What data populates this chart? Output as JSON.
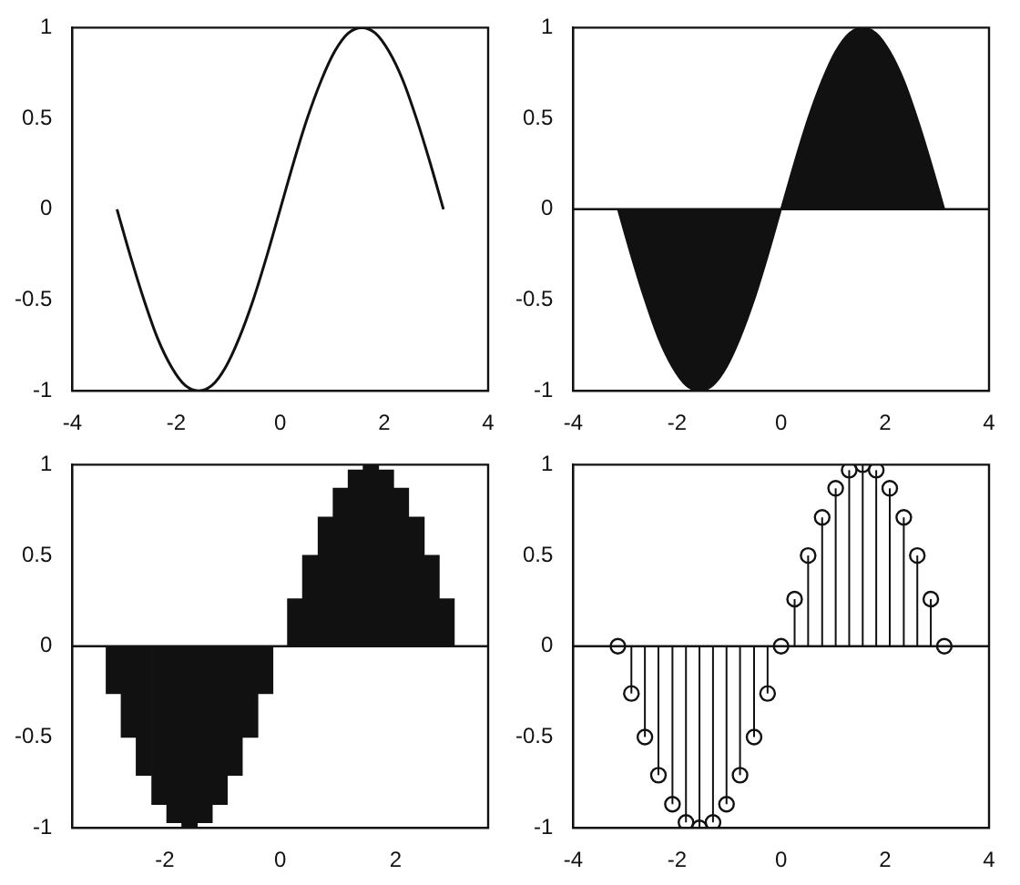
{
  "chart_data": [
    {
      "type": "line",
      "x": [
        -3.14,
        -2.88,
        -2.62,
        -2.36,
        -2.09,
        -1.83,
        -1.57,
        -1.31,
        -1.05,
        -0.79,
        -0.52,
        -0.26,
        0,
        0.26,
        0.52,
        0.79,
        1.05,
        1.31,
        1.57,
        1.83,
        2.09,
        2.36,
        2.62,
        2.88,
        3.14
      ],
      "series": [
        {
          "color": "#111111",
          "values": [
            0,
            -0.26,
            -0.5,
            -0.71,
            -0.87,
            -0.97,
            -1,
            -0.97,
            -0.87,
            -0.71,
            -0.5,
            -0.26,
            0,
            0.26,
            0.5,
            0.71,
            0.87,
            0.97,
            1,
            0.97,
            0.87,
            0.71,
            0.5,
            0.26,
            0
          ]
        }
      ],
      "xlim": [
        -4,
        4
      ],
      "xticks": [
        -4,
        -2,
        0,
        2,
        4
      ],
      "ylim": [
        -1,
        1
      ],
      "yticks": [
        -1,
        -0.5,
        0,
        0.5,
        1
      ]
    },
    {
      "type": "area",
      "x": [
        -3.14,
        -2.88,
        -2.62,
        -2.36,
        -2.09,
        -1.83,
        -1.57,
        -1.31,
        -1.05,
        -0.79,
        -0.52,
        -0.26,
        0,
        0.26,
        0.52,
        0.79,
        1.05,
        1.31,
        1.57,
        1.83,
        2.09,
        2.36,
        2.62,
        2.88,
        3.14
      ],
      "series": [
        {
          "color": "#111111",
          "values": [
            0,
            -0.26,
            -0.5,
            -0.71,
            -0.87,
            -0.97,
            -1,
            -0.97,
            -0.87,
            -0.71,
            -0.5,
            -0.26,
            0,
            0.26,
            0.5,
            0.71,
            0.87,
            0.97,
            1,
            0.97,
            0.87,
            0.71,
            0.5,
            0.26,
            0
          ]
        }
      ],
      "xlim": [
        -4,
        4
      ],
      "xticks": [
        -4,
        -2,
        0,
        2,
        4
      ],
      "ylim": [
        -1,
        1
      ],
      "yticks": [
        -1,
        -0.5,
        0,
        0.5,
        1
      ],
      "ref_lines": [
        {
          "axis": "y",
          "value": 0,
          "color": "#111111"
        }
      ]
    },
    {
      "type": "bar",
      "x": [
        -3.14,
        -2.88,
        -2.62,
        -2.36,
        -2.09,
        -1.83,
        -1.57,
        -1.31,
        -1.05,
        -0.79,
        -0.52,
        -0.26,
        0,
        0.26,
        0.52,
        0.79,
        1.05,
        1.31,
        1.57,
        1.83,
        2.09,
        2.36,
        2.62,
        2.88,
        3.14
      ],
      "series": [
        {
          "color": "#111111",
          "values": [
            0,
            -0.26,
            -0.5,
            -0.71,
            -0.87,
            -0.97,
            -1,
            -0.97,
            -0.87,
            -0.71,
            -0.5,
            -0.26,
            0,
            0.26,
            0.5,
            0.71,
            0.87,
            0.97,
            1,
            0.97,
            0.87,
            0.71,
            0.5,
            0.26,
            0
          ]
        }
      ],
      "xlim": [
        -3.6,
        3.6
      ],
      "xticks": [
        -2,
        0,
        2
      ],
      "ylim": [
        -1,
        1
      ],
      "yticks": [
        -1,
        -0.5,
        0,
        0.5,
        1
      ],
      "ref_lines": [
        {
          "axis": "y",
          "value": 0,
          "color": "#111111"
        }
      ]
    },
    {
      "type": "lollipop",
      "x": [
        -3.14,
        -2.88,
        -2.62,
        -2.36,
        -2.09,
        -1.83,
        -1.57,
        -1.31,
        -1.05,
        -0.79,
        -0.52,
        -0.26,
        0,
        0.26,
        0.52,
        0.79,
        1.05,
        1.31,
        1.57,
        1.83,
        2.09,
        2.36,
        2.62,
        2.88,
        3.14
      ],
      "series": [
        {
          "color": "#111111",
          "values": [
            0,
            -0.26,
            -0.5,
            -0.71,
            -0.87,
            -0.97,
            -1,
            -0.97,
            -0.87,
            -0.71,
            -0.5,
            -0.26,
            0,
            0.26,
            0.5,
            0.71,
            0.87,
            0.97,
            1,
            0.97,
            0.87,
            0.71,
            0.5,
            0.26,
            0
          ]
        }
      ],
      "xlim": [
        -4,
        4
      ],
      "xticks": [
        -4,
        -2,
        0,
        2,
        4
      ],
      "ylim": [
        -1,
        1
      ],
      "yticks": [
        -1,
        -0.5,
        0,
        0.5,
        1
      ],
      "marker": "circle",
      "ref_lines": [
        {
          "axis": "y",
          "value": 0,
          "color": "#111111"
        }
      ]
    }
  ]
}
